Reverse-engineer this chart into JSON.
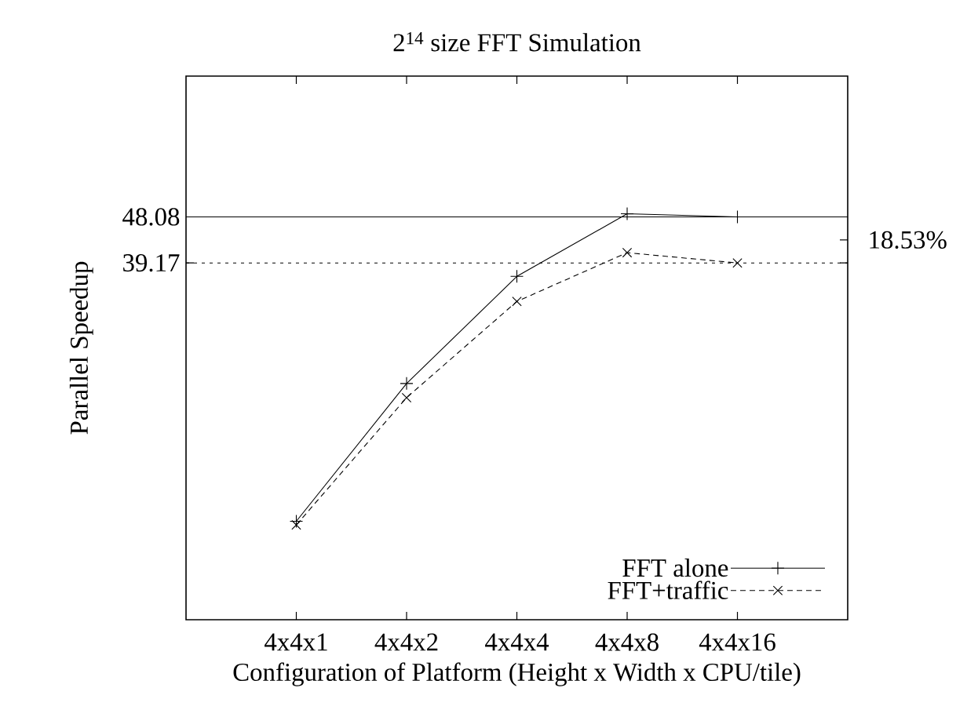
{
  "chart_data": {
    "type": "line",
    "title": "2$^{14}$ size FFT Simulation",
    "xlabel": "Configuration of Platform (Height x Width x CPU/tile)",
    "ylabel": "Parallel Speedup",
    "categories": [
      "4x4x1",
      "4x4x2",
      "4x4x4",
      "4x4x8",
      "4x4x16"
    ],
    "series": [
      {
        "name": "FFT alone",
        "color": "#000000",
        "marker": "cross",
        "line_style": "solid",
        "values": [
          12.4,
          22.9,
          36.9,
          48.75,
          48.08
        ]
      },
      {
        "name": "FFT+traffic",
        "color": "#000000",
        "marker": "cross",
        "line_style": "dashed",
        "values": [
          12.2,
          21.5,
          33.0,
          41.0,
          39.17
        ]
      }
    ],
    "log": true,
    "ylim": [
      8,
      90
    ],
    "yticks": [
      39.17,
      48.08
    ],
    "ref_lines": [
      {
        "axis": "y",
        "value": 48.08,
        "color": "#000000",
        "line_style": "solid"
      },
      {
        "axis": "y",
        "value": 39.17,
        "color": "#000000",
        "line_style": "dotted"
      }
    ],
    "annotations": [
      "18.53%"
    ],
    "legend": "bottom right",
    "grid": false
  }
}
